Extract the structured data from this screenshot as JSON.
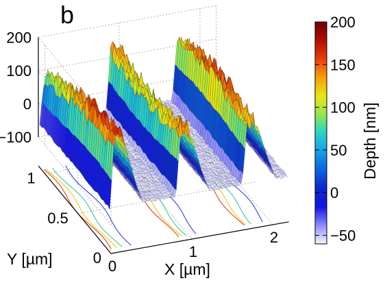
{
  "figure": {
    "panel_label": "b"
  },
  "chart_data": {
    "type": "surface3d",
    "panel": "b",
    "xlabel": "X [µm]",
    "ylabel": "Y [µm]",
    "zlabel": "",
    "x_ticks": [
      "0",
      "1",
      "2"
    ],
    "y_ticks": [
      "0",
      "0.5",
      "1"
    ],
    "z_ticks": [
      "200",
      "100",
      "0",
      "−100"
    ],
    "xlim": [
      0,
      2.2
    ],
    "ylim": [
      0,
      1.1
    ],
    "zlim": [
      -100,
      200
    ],
    "grid": true,
    "colorbar": {
      "label": "Depth [nm]",
      "ticks": [
        "200",
        "150",
        "100",
        "50",
        "0",
        "−50"
      ],
      "tick_values": [
        200,
        150,
        100,
        50,
        0,
        -50
      ],
      "range": [
        -60,
        200
      ],
      "colormap": [
        "#f4f4ff",
        "#8c8cff",
        "#1414e6",
        "#0a28c8",
        "#0a64dc",
        "#14a0e6",
        "#28d2c8",
        "#96e650",
        "#e6e614",
        "#f5a00a",
        "#eb3c0a",
        "#b40f05",
        "#6e0000"
      ]
    },
    "profile": {
      "x_period": 0.82,
      "ridges": [
        {
          "x_start": 0.0,
          "x_end": 0.18,
          "height": 150
        },
        {
          "x_start": 0.82,
          "x_end": 1.0,
          "height": 150
        },
        {
          "x_start": 1.64,
          "x_end": 1.82,
          "height": 150
        }
      ],
      "trough_depth": -55
    }
  }
}
